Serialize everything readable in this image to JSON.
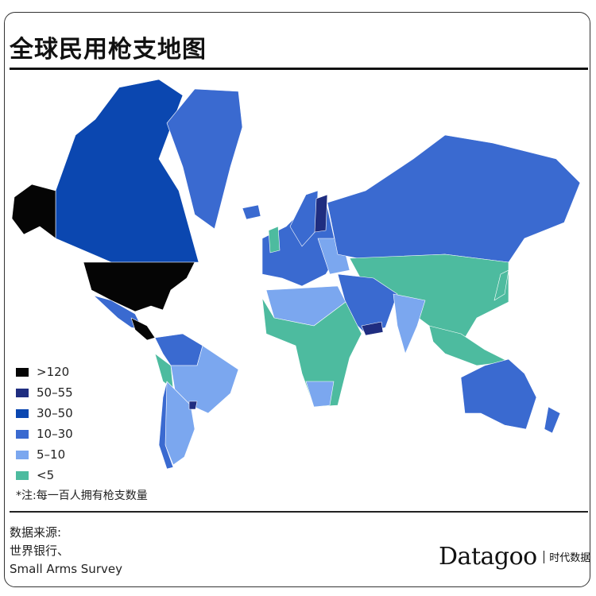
{
  "title": "全球民用枪支地图",
  "legend": [
    {
      "label": ">120",
      "color": "#050505"
    },
    {
      "label": "50–55",
      "color": "#1f2d80"
    },
    {
      "label": "30–50",
      "color": "#0b47b0"
    },
    {
      "label": "10–30",
      "color": "#3a6ad0"
    },
    {
      "label": "5–10",
      "color": "#7ba7ef"
    },
    {
      "label": "<5",
      "color": "#4dbb9f"
    }
  ],
  "note": "*注:每一百人拥有枪支数量",
  "source": {
    "label": "数据来源:",
    "line1": "世界银行、",
    "line2": "Small Arms Survey"
  },
  "logo": {
    "main": "Datagoo",
    "sub": "时代数据"
  }
}
